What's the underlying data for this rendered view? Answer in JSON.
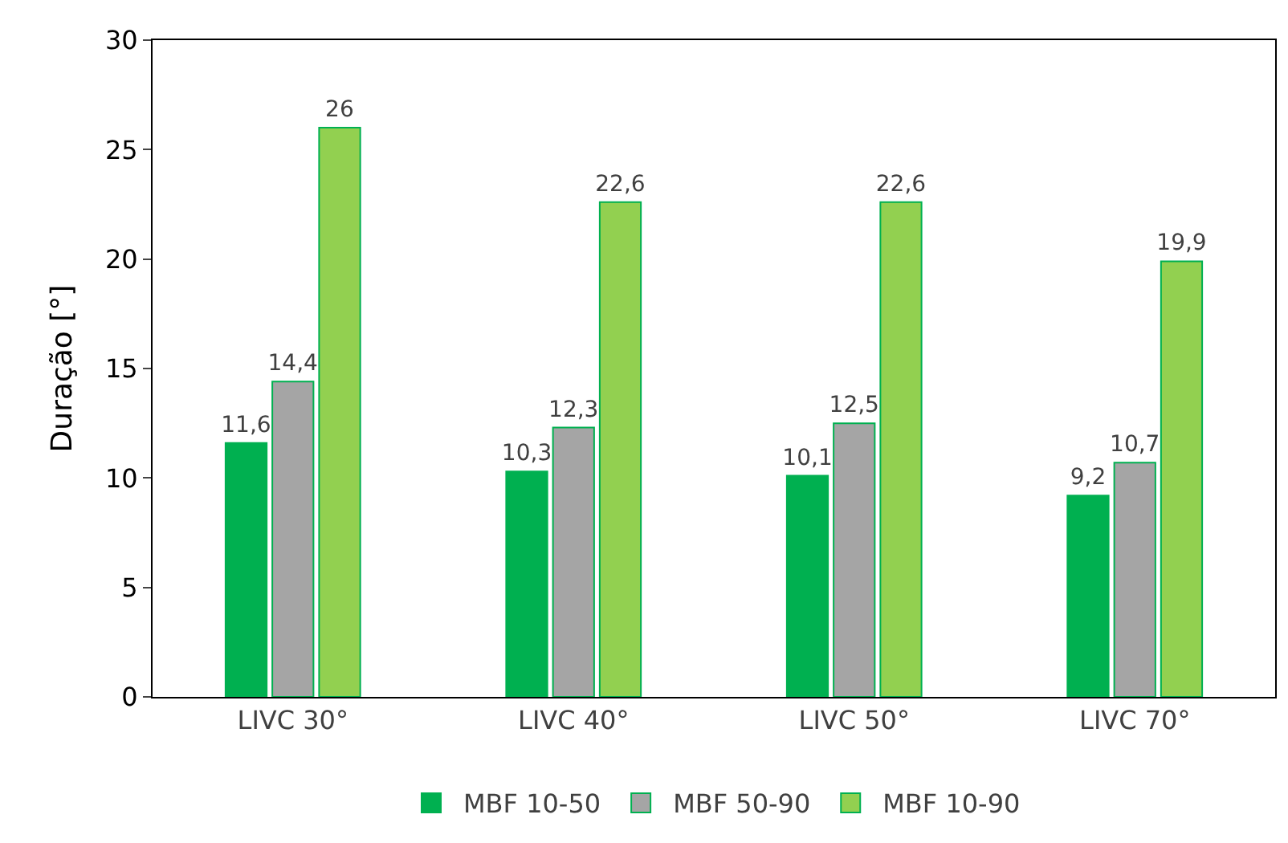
{
  "chart_data": {
    "type": "bar",
    "ylabel": "Duração [°]",
    "categories": [
      "LIVC 30°",
      "LIVC 40°",
      "LIVC 50°",
      "LIVC 70°"
    ],
    "series": [
      {
        "name": "MBF 10-50",
        "color": "#00b050",
        "values": [
          11.6,
          10.3,
          10.1,
          9.2
        ],
        "value_labels": [
          "11,6",
          "10,3",
          "10,1",
          "9,2"
        ]
      },
      {
        "name": "MBF 50-90",
        "color": "#a5a5a5",
        "values": [
          14.4,
          12.3,
          12.5,
          10.7
        ],
        "value_labels": [
          "14,4",
          "12,3",
          "12,5",
          "10,7"
        ]
      },
      {
        "name": "MBF 10-90",
        "color": "#92d050",
        "values": [
          26,
          22.6,
          22.6,
          19.9
        ],
        "value_labels": [
          "26",
          "22,6",
          "22,6",
          "19,9"
        ]
      }
    ],
    "ylim": [
      0,
      30
    ],
    "yticks": [
      0,
      5,
      10,
      15,
      20,
      25,
      30
    ],
    "legend": "bottom"
  }
}
